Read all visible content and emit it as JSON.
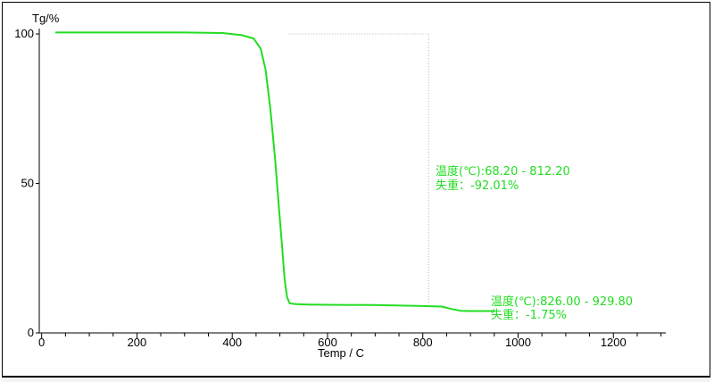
{
  "chart_data": {
    "type": "line",
    "ylabel": "Tg/%",
    "xlabel": "Temp / C",
    "xlim": [
      -5,
      1310
    ],
    "ylim": [
      0,
      103
    ],
    "x_ticks": [
      0,
      200,
      400,
      600,
      800,
      1000,
      1200
    ],
    "y_ticks": [
      0,
      50,
      100
    ],
    "x_tick_labels": [
      "0",
      "200",
      "400",
      "600",
      "800",
      "1000",
      "1200"
    ],
    "y_tick_labels": [
      "0",
      "50",
      "100"
    ],
    "grid": false,
    "series": [
      {
        "color": "#22dd22",
        "x": [
          30,
          100,
          200,
          300,
          380,
          420,
          445,
          460,
          470,
          480,
          490,
          498,
          505,
          510,
          515,
          520,
          525,
          535,
          560,
          600,
          700,
          800,
          840,
          860,
          880,
          900,
          950
        ],
        "y": [
          100.5,
          100.5,
          100.5,
          100.5,
          100.3,
          99.6,
          98.5,
          95,
          88,
          75,
          58,
          42,
          28,
          18,
          12,
          10,
          9.8,
          9.6,
          9.5,
          9.4,
          9.3,
          9.0,
          8.8,
          8.0,
          7.4,
          7.3,
          7.3
        ]
      }
    ],
    "annotations": [
      {
        "range_line": "温度(℃):68.20 - 812.20",
        "loss_line": "失重：-92.01%",
        "x_end": 812.2,
        "y_top": 100
      },
      {
        "range_line": "温度(℃):826.00 - 929.80",
        "loss_line": "失重：-1.75%"
      }
    ]
  }
}
